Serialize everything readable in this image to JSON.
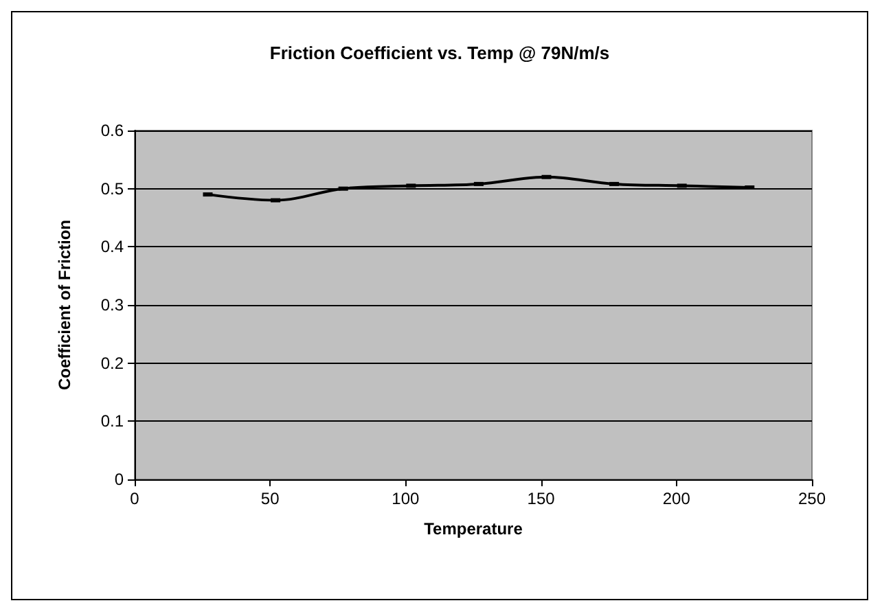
{
  "chart_data": {
    "type": "line",
    "title": "Friction Coefficient vs. Temp @ 79N/m/s",
    "xlabel": "Temperature",
    "ylabel": "Coefficient of Friction",
    "x": [
      27,
      52,
      77,
      102,
      127,
      152,
      177,
      202,
      227
    ],
    "series": [
      {
        "color": "#000000",
        "values": [
          0.49,
          0.48,
          0.5,
          0.505,
          0.508,
          0.52,
          0.508,
          0.505,
          0.502
        ]
      }
    ],
    "xlim": [
      0,
      250
    ],
    "xticks": [
      0,
      50,
      100,
      150,
      200,
      250
    ],
    "ylim": [
      0,
      0.6
    ],
    "yticks": [
      0,
      0.1,
      0.2,
      0.3,
      0.4,
      0.5,
      0.6
    ],
    "grid": "y",
    "marker": "square",
    "line_style": "solid"
  }
}
